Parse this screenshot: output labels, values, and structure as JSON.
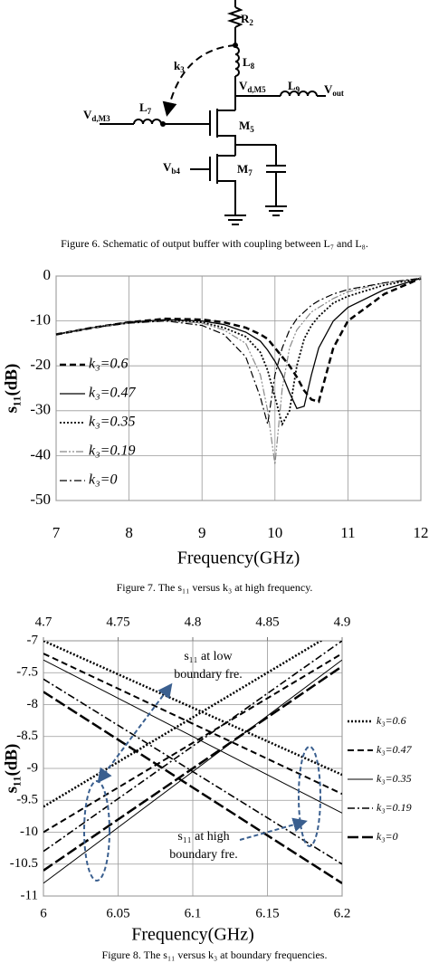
{
  "figure6": {
    "labels": [
      {
        "text": "R",
        "sub": "2"
      },
      {
        "text": "L",
        "sub": "8"
      },
      {
        "text": "k",
        "sub": "3"
      },
      {
        "text": "V",
        "sub": "d,M5"
      },
      {
        "text": "L",
        "sub": "9"
      },
      {
        "text": "V",
        "sub": "out"
      },
      {
        "text": "V",
        "sub": "d,M3"
      },
      {
        "text": "L",
        "sub": "7"
      },
      {
        "text": "M",
        "sub": "5"
      },
      {
        "text": "V",
        "sub": "b4"
      },
      {
        "text": "M",
        "sub": "7"
      }
    ],
    "caption": "Figure 6.   Schematic of output buffer with coupling between L₇ and L₈."
  },
  "chart_data": [
    {
      "type": "line",
      "caption": "Figure 7.   The s₁₁ versus k₃ at high frequency.",
      "xlabel": "Frequency(GHz)",
      "ylabel": "s₁₁(dB)",
      "x": [
        7,
        7.5,
        8,
        8.5,
        9,
        9.3,
        9.6,
        9.8,
        9.9,
        10,
        10.1,
        10.2,
        10.3,
        10.4,
        10.5,
        10.6,
        10.8,
        11,
        11.5,
        12
      ],
      "xlim": [
        7,
        12
      ],
      "xticks": [
        7,
        8,
        9,
        10,
        11,
        12
      ],
      "ylim": [
        -50,
        0
      ],
      "yticks": [
        -50,
        -40,
        -30,
        -20,
        -10,
        0
      ],
      "grid": true,
      "series": [
        {
          "name": "k₃=0.6",
          "color": "#000000",
          "dash": "7,4",
          "width": 2.5,
          "values": [
            -13,
            -11.5,
            -10.3,
            -9.5,
            -9.7,
            -10.3,
            -11.5,
            -13,
            -14,
            -16,
            -18,
            -20,
            -22.5,
            -25.5,
            -27.5,
            -28,
            -16,
            -10,
            -4,
            -0.5
          ]
        },
        {
          "name": "k₃=0.47",
          "color": "#000000",
          "dash": "",
          "width": 1.3,
          "values": [
            -13,
            -11.5,
            -10.3,
            -9.7,
            -10,
            -10.8,
            -12.5,
            -14.5,
            -16.5,
            -19,
            -22,
            -26,
            -29.5,
            -29,
            -22,
            -16,
            -10,
            -7,
            -3,
            -0.5
          ]
        },
        {
          "name": "k₃=0.35",
          "color": "#000000",
          "dash": "2,2",
          "width": 1.8,
          "values": [
            -13,
            -11.5,
            -10.3,
            -9.8,
            -10.3,
            -11.5,
            -13.5,
            -17,
            -21,
            -27,
            -33,
            -30,
            -20,
            -14,
            -11,
            -9,
            -6,
            -4.5,
            -2,
            -0.5
          ]
        },
        {
          "name": "k₃=0.19",
          "color": "#888888",
          "dash": "8,2,2,2,2,2",
          "width": 1.2,
          "values": [
            -13,
            -11.5,
            -10.5,
            -10,
            -10.5,
            -12,
            -15,
            -22,
            -30,
            -42,
            -25,
            -16,
            -12,
            -10,
            -8,
            -7,
            -5,
            -3.5,
            -1.5,
            -0.5
          ]
        },
        {
          "name": "k₃=0",
          "color": "#000000",
          "dash": "8,3,2,3",
          "width": 1.2,
          "values": [
            -13,
            -11.5,
            -10.5,
            -10,
            -11,
            -13,
            -18,
            -27,
            -33,
            -22,
            -16,
            -12,
            -9.5,
            -8,
            -6.5,
            -5.5,
            -4,
            -3,
            -1.5,
            -0.5
          ]
        }
      ]
    },
    {
      "type": "line",
      "caption": "Figure 8.   The s₁₁ versus k₃ at boundary frequencies.",
      "xlabel": "Frequency(GHz)",
      "ylabel": "s₁₁(dB)",
      "x": [
        6,
        6.2
      ],
      "xlim": [
        6,
        6.2
      ],
      "xticks": [
        6,
        6.05,
        6.1,
        6.15,
        6.2
      ],
      "x2": [
        4.7,
        4.9
      ],
      "x2lim": [
        4.7,
        4.9
      ],
      "x2ticks": [
        4.7,
        4.75,
        4.8,
        4.85,
        4.9
      ],
      "ylim": [
        -11,
        -7
      ],
      "yticks": [
        -11,
        -10.5,
        -10,
        -9.5,
        -9,
        -8.5,
        -8,
        -7.5,
        -7
      ],
      "grid": true,
      "annotations": [
        {
          "lines": [
            "s₁₁ at low",
            "boundary fre."
          ]
        },
        {
          "lines": [
            "s₁₁ at high",
            "boundary fre."
          ]
        }
      ],
      "series": [
        {
          "name": "k₃=0.6",
          "color": "#000000",
          "dash": "2,2",
          "width": 2.5,
          "values": [
            -9.6,
            -6.8
          ],
          "values2": [
            -7.0,
            -9.1
          ]
        },
        {
          "name": "k₃=0.47",
          "color": "#000000",
          "dash": "7,4",
          "width": 2,
          "values": [
            -10.0,
            -7.2
          ],
          "values2": [
            -7.2,
            -9.4
          ]
        },
        {
          "name": "k₃=0.35",
          "color": "#000000",
          "dash": "",
          "width": 1,
          "values": [
            -10.8,
            -7.3
          ],
          "values2": [
            -7.3,
            -9.7
          ]
        },
        {
          "name": "k₃=0.19",
          "color": "#000000",
          "dash": "8,3,2,3",
          "width": 1.6,
          "values": [
            -10.3,
            -7.0
          ],
          "values2": [
            -7.6,
            -10.5
          ]
        },
        {
          "name": "k₃=0",
          "color": "#000000",
          "dash": "12,4",
          "width": 2.5,
          "values": [
            -10.6,
            -7.4
          ],
          "values2": [
            -7.8,
            -10.8
          ]
        }
      ]
    }
  ]
}
